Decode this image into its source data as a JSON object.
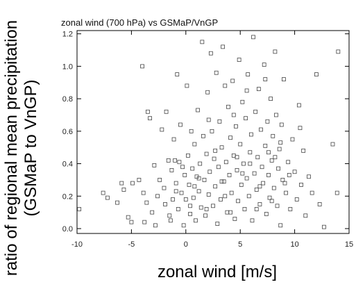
{
  "chart_data": {
    "type": "scatter",
    "title": "zonal wind (700 hPa) vs GSMaP/VnGP",
    "xlabel": "zonal wind [m/s]",
    "ylabel_line1": "ratio of regional mean precipitation",
    "ylabel_line2": "(GSMaP to VnGP)",
    "xlim": [
      -10,
      15
    ],
    "ylim": [
      -0.03,
      1.22
    ],
    "xticks": [
      "-10",
      "-5",
      "0",
      "5",
      "10",
      "15"
    ],
    "yticks": [
      "0.0",
      "0.2",
      "0.4",
      "0.6",
      "0.8",
      "1.0",
      "1.2"
    ],
    "marker": "open-square",
    "grid": false,
    "points": [
      [
        -9.8,
        0.12
      ],
      [
        -7.6,
        0.22
      ],
      [
        -7.2,
        0.19
      ],
      [
        -6.3,
        0.16
      ],
      [
        -5.9,
        0.28
      ],
      [
        -5.7,
        0.24
      ],
      [
        -5.3,
        0.07
      ],
      [
        -5.0,
        0.04
      ],
      [
        -4.9,
        0.28
      ],
      [
        -4.3,
        0.3
      ],
      [
        -4.0,
        1.0
      ],
      [
        -3.9,
        0.22
      ],
      [
        -3.6,
        0.16
      ],
      [
        -3.5,
        0.72
      ],
      [
        -3.3,
        0.68
      ],
      [
        -3.1,
        0.1
      ],
      [
        -2.8,
        0.02
      ],
      [
        -2.6,
        0.2
      ],
      [
        -2.4,
        0.3
      ],
      [
        -2.2,
        0.61
      ],
      [
        -2.0,
        0.25
      ],
      [
        -1.9,
        0.15
      ],
      [
        -1.8,
        0.72
      ],
      [
        -1.6,
        0.42
      ],
      [
        -1.5,
        0.08
      ],
      [
        -1.3,
        0.36
      ],
      [
        -1.2,
        0.18
      ],
      [
        -1.1,
        0.55
      ],
      [
        -1.0,
        0.42
      ],
      [
        -0.9,
        0.28
      ],
      [
        -0.8,
        0.95
      ],
      [
        -0.7,
        0.12
      ],
      [
        -0.6,
        0.41
      ],
      [
        -0.5,
        0.64
      ],
      [
        -0.4,
        0.22
      ],
      [
        -0.3,
        0.38
      ],
      [
        -0.2,
        0.02
      ],
      [
        -0.1,
        0.33
      ],
      [
        0.0,
        0.18
      ],
      [
        0.1,
        0.88
      ],
      [
        0.2,
        0.45
      ],
      [
        0.3,
        0.27
      ],
      [
        0.4,
        0.09
      ],
      [
        0.5,
        0.6
      ],
      [
        0.6,
        0.37
      ],
      [
        0.7,
        0.19
      ],
      [
        0.8,
        0.52
      ],
      [
        0.9,
        0.05
      ],
      [
        1.0,
        0.32
      ],
      [
        1.1,
        0.73
      ],
      [
        1.2,
        0.23
      ],
      [
        1.3,
        0.4
      ],
      [
        1.4,
        0.13
      ],
      [
        1.5,
        1.15
      ],
      [
        1.6,
        0.57
      ],
      [
        1.7,
        0.3
      ],
      [
        1.8,
        0.08
      ],
      [
        1.9,
        0.46
      ],
      [
        2.0,
        0.84
      ],
      [
        2.1,
        0.21
      ],
      [
        2.2,
        0.35
      ],
      [
        2.3,
        1.08
      ],
      [
        2.4,
        0.6
      ],
      [
        2.5,
        0.14
      ],
      [
        2.6,
        0.43
      ],
      [
        2.7,
        0.26
      ],
      [
        2.8,
        0.96
      ],
      [
        2.9,
        0.03
      ],
      [
        3.0,
        0.38
      ],
      [
        3.1,
        0.66
      ],
      [
        3.2,
        0.18
      ],
      [
        3.3,
        0.5
      ],
      [
        3.4,
        1.12
      ],
      [
        3.5,
        0.29
      ],
      [
        3.6,
        0.88
      ],
      [
        3.7,
        0.41
      ],
      [
        3.8,
        0.1
      ],
      [
        3.9,
        0.75
      ],
      [
        4.0,
        0.33
      ],
      [
        4.1,
        0.56
      ],
      [
        4.2,
        0.22
      ],
      [
        4.3,
        0.91
      ],
      [
        4.4,
        0.45
      ],
      [
        4.5,
        0.06
      ],
      [
        4.6,
        0.63
      ],
      [
        4.7,
        0.36
      ],
      [
        4.8,
        0.17
      ],
      [
        4.9,
        1.04
      ],
      [
        5.0,
        0.52
      ],
      [
        5.1,
        0.27
      ],
      [
        5.2,
        0.78
      ],
      [
        5.3,
        0.4
      ],
      [
        5.4,
        0.12
      ],
      [
        5.5,
        0.68
      ],
      [
        5.6,
        0.31
      ],
      [
        5.7,
        0.95
      ],
      [
        5.8,
        0.2
      ],
      [
        5.9,
        0.47
      ],
      [
        6.0,
        0.58
      ],
      [
        6.1,
        0.05
      ],
      [
        6.2,
        1.18
      ],
      [
        6.3,
        0.34
      ],
      [
        6.4,
        0.72
      ],
      [
        6.5,
        0.24
      ],
      [
        6.6,
        0.44
      ],
      [
        6.7,
        0.86
      ],
      [
        6.8,
        0.15
      ],
      [
        6.9,
        0.61
      ],
      [
        7.0,
        0.38
      ],
      [
        7.1,
        0.28
      ],
      [
        7.2,
        1.01
      ],
      [
        7.3,
        0.51
      ],
      [
        7.4,
        0.09
      ],
      [
        7.5,
        0.66
      ],
      [
        7.6,
        0.33
      ],
      [
        7.7,
        0.19
      ],
      [
        7.8,
        0.8
      ],
      [
        7.9,
        0.42
      ],
      [
        8.0,
        0.57
      ],
      [
        8.1,
        0.25
      ],
      [
        8.2,
        1.09
      ],
      [
        8.3,
        0.7
      ],
      [
        8.4,
        0.14
      ],
      [
        8.5,
        0.37
      ],
      [
        8.6,
        0.49
      ],
      [
        8.7,
        0.02
      ],
      [
        8.8,
        0.64
      ],
      [
        8.9,
        0.3
      ],
      [
        9.0,
        0.92
      ],
      [
        9.2,
        0.22
      ],
      [
        9.4,
        0.41
      ],
      [
        9.6,
        0.12
      ],
      [
        9.8,
        0.55
      ],
      [
        10.0,
        0.35
      ],
      [
        10.2,
        0.18
      ],
      [
        10.4,
        0.76
      ],
      [
        10.6,
        0.27
      ],
      [
        10.8,
        0.48
      ],
      [
        11.0,
        0.08
      ],
      [
        11.3,
        0.32
      ],
      [
        11.6,
        0.22
      ],
      [
        12.0,
        0.95
      ],
      [
        12.3,
        0.15
      ],
      [
        12.7,
        0.01
      ],
      [
        13.5,
        0.52
      ],
      [
        13.9,
        0.22
      ],
      [
        14.0,
        1.09
      ],
      [
        -3.8,
        0.04
      ],
      [
        -2.9,
        0.39
      ],
      [
        -0.9,
        0.23
      ],
      [
        0.4,
        0.14
      ],
      [
        1.2,
        0.31
      ],
      [
        2.7,
        0.48
      ],
      [
        3.6,
        0.2
      ],
      [
        4.4,
        0.7
      ],
      [
        5.2,
        0.34
      ],
      [
        6.5,
        0.12
      ],
      [
        7.3,
        0.92
      ],
      [
        8.2,
        0.44
      ],
      [
        9.1,
        0.28
      ],
      [
        10.5,
        0.62
      ],
      [
        -1.4,
        0.05
      ],
      [
        0.8,
        0.26
      ],
      [
        2.1,
        0.67
      ],
      [
        3.3,
        0.29
      ],
      [
        4.7,
        0.44
      ],
      [
        5.6,
        0.85
      ],
      [
        6.8,
        0.26
      ],
      [
        7.9,
        0.17
      ],
      [
        8.7,
        0.53
      ],
      [
        9.5,
        0.33
      ],
      [
        1.9,
        0.12
      ],
      [
        4.1,
        0.1
      ],
      [
        5.9,
        0.4
      ],
      [
        7.6,
        0.47
      ]
    ]
  }
}
